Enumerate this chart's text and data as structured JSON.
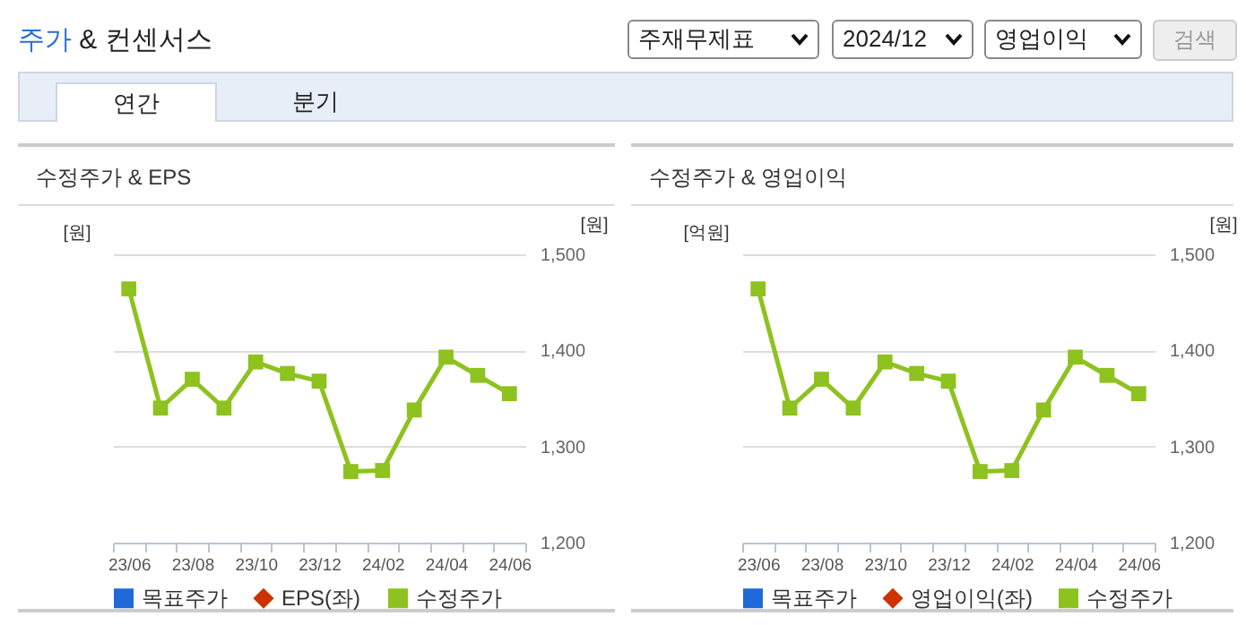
{
  "chart_data": [
    {
      "type": "other",
      "title": "주가 & 컨센서스",
      "annotations": [
        "주재무제표",
        "2024/12",
        "영업이익",
        "검색",
        "연간",
        "분기"
      ]
    },
    {
      "type": "line",
      "title": "수정주가 & EPS",
      "ylabel": "[원]",
      "y2label": "[원]",
      "categories": [
        "23/06",
        null,
        "23/08",
        null,
        "23/10",
        null,
        "23/12",
        null,
        "24/02",
        null,
        "24/04",
        null,
        "24/06"
      ],
      "y2lim": [
        1200,
        1500
      ],
      "y2ticks": [
        {
          "value": 1200,
          "label": "1,200"
        },
        {
          "value": 1300,
          "label": "1,300"
        },
        {
          "value": 1400,
          "label": "1,400"
        },
        {
          "value": 1500,
          "label": "1,500"
        }
      ],
      "grid": "y",
      "legend": "bottom",
      "series": [
        {
          "name": "목표주가",
          "type": "bar",
          "color": "#1f6ad9",
          "values": [
            null,
            null,
            null,
            null,
            null,
            null,
            null,
            null,
            null,
            null,
            null,
            null,
            null
          ]
        },
        {
          "name": "EPS(좌)",
          "type": "line",
          "marker": "diamond",
          "color": "#cc3300",
          "values": [
            null,
            null,
            null,
            null,
            null,
            null,
            null,
            null,
            null,
            null,
            null,
            null,
            null
          ]
        },
        {
          "name": "수정주가",
          "type": "line",
          "marker": "square",
          "axis": "y2",
          "color": "#8dc21f",
          "values": [
            1464,
            1340,
            1370,
            1340,
            1388,
            1376,
            1368,
            1274,
            1275,
            1338,
            1393,
            1374,
            1355
          ]
        }
      ]
    },
    {
      "type": "line",
      "title": "수정주가 & 영업이익",
      "ylabel": "[억원]",
      "y2label": "[원]",
      "categories": [
        "23/06",
        null,
        "23/08",
        null,
        "23/10",
        null,
        "23/12",
        null,
        "24/02",
        null,
        "24/04",
        null,
        "24/06"
      ],
      "y2lim": [
        1200,
        1500
      ],
      "y2ticks": [
        {
          "value": 1200,
          "label": "1,200"
        },
        {
          "value": 1300,
          "label": "1,300"
        },
        {
          "value": 1400,
          "label": "1,400"
        },
        {
          "value": 1500,
          "label": "1,500"
        }
      ],
      "grid": "y",
      "legend": "bottom",
      "series": [
        {
          "name": "목표주가",
          "type": "bar",
          "color": "#1f6ad9",
          "values": [
            null,
            null,
            null,
            null,
            null,
            null,
            null,
            null,
            null,
            null,
            null,
            null,
            null
          ]
        },
        {
          "name": "영업이익(좌)",
          "type": "line",
          "marker": "diamond",
          "color": "#cc3300",
          "values": [
            null,
            null,
            null,
            null,
            null,
            null,
            null,
            null,
            null,
            null,
            null,
            null,
            null
          ]
        },
        {
          "name": "수정주가",
          "type": "line",
          "marker": "square",
          "axis": "y2",
          "color": "#8dc21f",
          "values": [
            1464,
            1340,
            1370,
            1340,
            1388,
            1376,
            1368,
            1274,
            1275,
            1338,
            1393,
            1374,
            1355
          ]
        }
      ]
    }
  ]
}
